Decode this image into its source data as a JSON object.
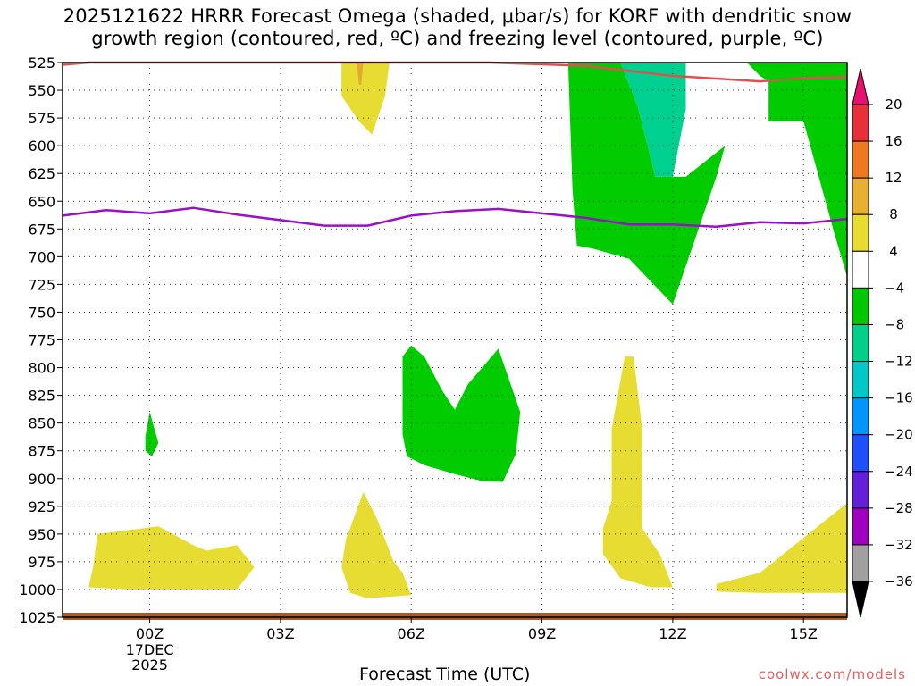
{
  "chart_data": {
    "type": "heatmap",
    "title_line1": "2025121622 HRRR Forecast Omega (shaded, μbar/s) for KORF with dendritic snow",
    "title_line2": "growth region (contoured, red, ºC) and freezing level (contoured, purple, ºC)",
    "xlabel": "Forecast Time (UTC)",
    "x_ticks": [
      "00Z",
      "03Z",
      "06Z",
      "09Z",
      "12Z",
      "15Z"
    ],
    "x_tick_sublabel": [
      "17DEC",
      "2025"
    ],
    "y_ticks": [
      525,
      550,
      575,
      600,
      625,
      650,
      675,
      700,
      725,
      750,
      775,
      800,
      825,
      850,
      875,
      900,
      925,
      950,
      975,
      1000,
      1025
    ],
    "ylim": [
      1025,
      525
    ],
    "xlim_hours": [
      -2,
      16
    ],
    "grid": true,
    "colorbar": {
      "labels": [
        20,
        16,
        12,
        8,
        4,
        -4,
        -8,
        -12,
        -16,
        -20,
        -24,
        -28,
        -32,
        -36
      ],
      "colors": [
        "#e8303a",
        "#f07820",
        "#e8b030",
        "#e8dc30",
        "#ffffff",
        "#00c800",
        "#00d08a",
        "#00c8c8",
        "#0096ff",
        "#1e50ff",
        "#6420d8",
        "#a000c0",
        "#a0a0a0"
      ],
      "over_color": "#e8106e",
      "under_color": "#000000"
    },
    "freezing_level_hpa": [
      {
        "hour": -2,
        "p": 663
      },
      {
        "hour": -1,
        "p": 658
      },
      {
        "hour": 0,
        "p": 661
      },
      {
        "hour": 1,
        "p": 656
      },
      {
        "hour": 2,
        "p": 662
      },
      {
        "hour": 3,
        "p": 667
      },
      {
        "hour": 4,
        "p": 672
      },
      {
        "hour": 5,
        "p": 672
      },
      {
        "hour": 6,
        "p": 663
      },
      {
        "hour": 7,
        "p": 659
      },
      {
        "hour": 8,
        "p": 657
      },
      {
        "hour": 9,
        "p": 661
      },
      {
        "hour": 10,
        "p": 665
      },
      {
        "hour": 11,
        "p": 671
      },
      {
        "hour": 12,
        "p": 671
      },
      {
        "hour": 13,
        "p": 673
      },
      {
        "hour": 14,
        "p": 669
      },
      {
        "hour": 15,
        "p": 670
      },
      {
        "hour": 16,
        "p": 666
      }
    ],
    "dgz_top_hpa": [
      {
        "hour": -2,
        "p": 527
      },
      {
        "hour": -1.4,
        "p": 525
      },
      {
        "hour": 7.8,
        "p": 525
      },
      {
        "hour": 10,
        "p": 528
      },
      {
        "hour": 12,
        "p": 537
      },
      {
        "hour": 14,
        "p": 542
      },
      {
        "hour": 15,
        "p": 539
      },
      {
        "hour": 16,
        "p": 538
      }
    ],
    "shaded_regions": [
      {
        "color_class": "4 to 8",
        "points": [
          [
            4.4,
            525
          ],
          [
            5.5,
            525
          ],
          [
            5.4,
            555
          ],
          [
            5.1,
            590
          ],
          [
            4.8,
            578
          ],
          [
            4.4,
            555
          ]
        ]
      },
      {
        "color_class": "8 to 12",
        "points": [
          [
            4.75,
            525
          ],
          [
            4.9,
            525
          ],
          [
            4.85,
            545
          ],
          [
            4.8,
            545
          ]
        ]
      },
      {
        "color_class": "-4 to -8",
        "points": [
          [
            9.6,
            525
          ],
          [
            16,
            525
          ],
          [
            16,
            718
          ],
          [
            15.7,
            678
          ],
          [
            15,
            578
          ],
          [
            14.2,
            578
          ],
          [
            14.2,
            542
          ],
          [
            14,
            537
          ],
          [
            13.7,
            525
          ],
          [
            10.8,
            525
          ],
          [
            11.2,
            565
          ],
          [
            11.6,
            628
          ],
          [
            12.3,
            628
          ],
          [
            13.2,
            600
          ],
          [
            13,
            628
          ],
          [
            12,
            743
          ],
          [
            11,
            702
          ],
          [
            10.2,
            693
          ],
          [
            9.8,
            690
          ],
          [
            9.7,
            640
          ]
        ]
      },
      {
        "color_class": "-8 to -12",
        "points": [
          [
            10.8,
            525
          ],
          [
            12.3,
            525
          ],
          [
            12.3,
            567
          ],
          [
            12.0,
            628
          ],
          [
            11.6,
            628
          ],
          [
            11.2,
            565
          ]
        ]
      },
      {
        "color_class": "-4 to -8",
        "points": [
          [
            5.8,
            790
          ],
          [
            6.0,
            780
          ],
          [
            6.3,
            790
          ],
          [
            6.7,
            820
          ],
          [
            7.0,
            838
          ],
          [
            7.3,
            815
          ],
          [
            8.0,
            783
          ],
          [
            8.5,
            840
          ],
          [
            8.4,
            878
          ],
          [
            8.1,
            903
          ],
          [
            7.6,
            902
          ],
          [
            7.0,
            896
          ],
          [
            6.3,
            888
          ],
          [
            5.9,
            880
          ],
          [
            5.8,
            860
          ]
        ]
      },
      {
        "color_class": "4 to 8",
        "points": [
          [
            10.6,
            855
          ],
          [
            10.9,
            790
          ],
          [
            11.1,
            790
          ],
          [
            11.3,
            855
          ],
          [
            11.3,
            945
          ],
          [
            11.7,
            968
          ],
          [
            12.0,
            998
          ],
          [
            11.5,
            998
          ],
          [
            10.8,
            990
          ],
          [
            10.4,
            968
          ],
          [
            10.4,
            945
          ],
          [
            10.6,
            920
          ]
        ]
      },
      {
        "color_class": "4 to 8",
        "points": [
          [
            14.0,
            985
          ],
          [
            16.0,
            922
          ],
          [
            16.0,
            1003
          ],
          [
            14.0,
            1003
          ],
          [
            13.0,
            1002
          ],
          [
            13.0,
            995
          ]
        ]
      },
      {
        "color_class": "4 to 8",
        "points": [
          [
            -1.2,
            950
          ],
          [
            0.2,
            943
          ],
          [
            1,
            960
          ],
          [
            1.3,
            965
          ],
          [
            2,
            960
          ],
          [
            2.4,
            980
          ],
          [
            2.0,
            1000
          ],
          [
            1.0,
            1000
          ],
          [
            -0.5,
            1000
          ],
          [
            -1.4,
            998
          ],
          [
            -1.3,
            980
          ]
        ]
      },
      {
        "color_class": "4 to 8",
        "points": [
          [
            4.5,
            955
          ],
          [
            4.9,
            912
          ],
          [
            5.2,
            935
          ],
          [
            5.6,
            975
          ],
          [
            5.8,
            985
          ],
          [
            6.0,
            1005
          ],
          [
            5.0,
            1008
          ],
          [
            4.6,
            1003
          ],
          [
            4.4,
            980
          ]
        ]
      },
      {
        "color_class": "-4 to -8",
        "points": [
          [
            -0.1,
            862
          ],
          [
            0.0,
            840
          ],
          [
            0.2,
            868
          ],
          [
            0.05,
            880
          ],
          [
            -0.1,
            875
          ]
        ]
      }
    ]
  }
}
